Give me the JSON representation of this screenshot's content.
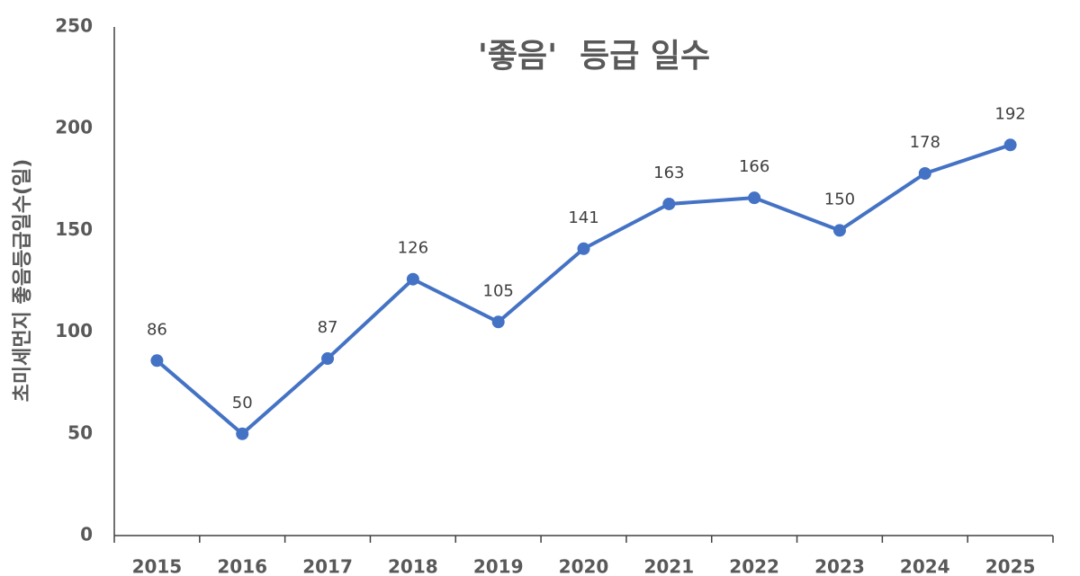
{
  "chart_data": {
    "type": "line",
    "title": "'좋음'  등급 일수",
    "y_label": "초미세먼지 좋음등급일수(일)",
    "categories": [
      "2015",
      "2016",
      "2017",
      "2018",
      "2019",
      "2020",
      "2021",
      "2022",
      "2023",
      "2024",
      "2025"
    ],
    "values": [
      86,
      50,
      87,
      126,
      105,
      141,
      163,
      166,
      150,
      178,
      192
    ],
    "color": "#4472c4",
    "ylim": [
      0,
      250
    ],
    "yticks": [
      0,
      50,
      100,
      150,
      200,
      250
    ],
    "grid": false
  }
}
